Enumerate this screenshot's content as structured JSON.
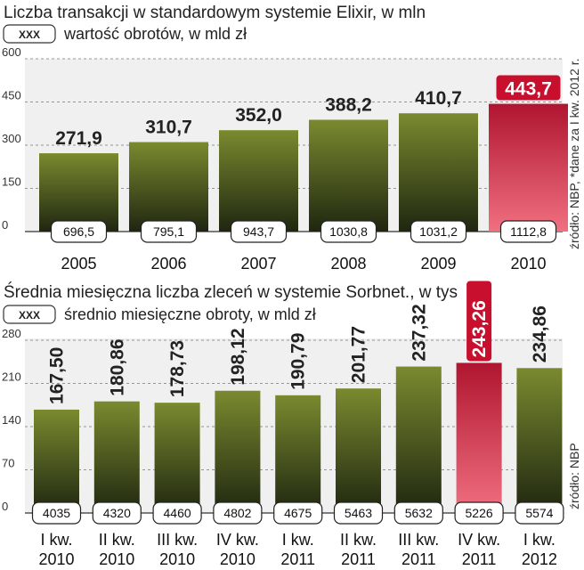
{
  "colors": {
    "bar_top": "#7a8a2f",
    "bar_bottom": "#1f2610",
    "highlight_top": "#f07080",
    "highlight_bottom": "#b01530",
    "highlight_label_bg": "#c8102e",
    "panel_bg": "#f0f0f0"
  },
  "chart_data": [
    {
      "type": "bar",
      "title": "Liczba transakcji w standardowym systemie Elixir, w mln",
      "legend_box": "XXX",
      "legend_text": "wartość obrotów, w mld zł",
      "source": "źródło: NBP, *dane za I kw. 2012 r.",
      "ylim": [
        0,
        600
      ],
      "yticks": [
        "0",
        "150",
        "300",
        "450",
        "600"
      ],
      "categories": [
        "2005",
        "2006",
        "2007",
        "2008",
        "2009",
        "2010"
      ],
      "values": [
        271.9,
        310.7,
        352.0,
        388.2,
        410.7,
        443.7
      ],
      "value_labels": [
        "271,9",
        "310,7",
        "352,0",
        "388,2",
        "410,7",
        "443,7"
      ],
      "box_values": [
        "696,5",
        "795,1",
        "943,7",
        "1030,8",
        "1031,2",
        "1112,8"
      ],
      "highlight_index": 5
    },
    {
      "type": "bar",
      "title": "Średnia miesięczna liczba zleceń w systemie Sorbnet., w tys",
      "legend_box": "XXX",
      "legend_text": "średnio miesięczne obroty, w mld zł",
      "source": "źródło: NBP",
      "ylim": [
        0,
        280
      ],
      "yticks": [
        "0",
        "70",
        "140",
        "210",
        "280"
      ],
      "categories": [
        [
          "I kw.",
          "2010"
        ],
        [
          "II kw.",
          "2010"
        ],
        [
          "III kw.",
          "2010"
        ],
        [
          "IV kw.",
          "2010"
        ],
        [
          "I kw.",
          "2011"
        ],
        [
          "II kw.",
          "2011"
        ],
        [
          "III kw.",
          "2011"
        ],
        [
          "IV kw.",
          "2011"
        ],
        [
          "I kw.",
          "2012"
        ]
      ],
      "values": [
        167.5,
        180.86,
        178.73,
        198.12,
        190.79,
        201.77,
        237.32,
        243.26,
        234.86
      ],
      "value_labels": [
        "167,50",
        "180,86",
        "178,73",
        "198,12",
        "190,79",
        "201,77",
        "237,32",
        "243,26",
        "234,86"
      ],
      "box_values": [
        "4035",
        "4320",
        "4460",
        "4802",
        "4675",
        "5463",
        "5632",
        "5226",
        "5574"
      ],
      "highlight_index": 7
    }
  ]
}
